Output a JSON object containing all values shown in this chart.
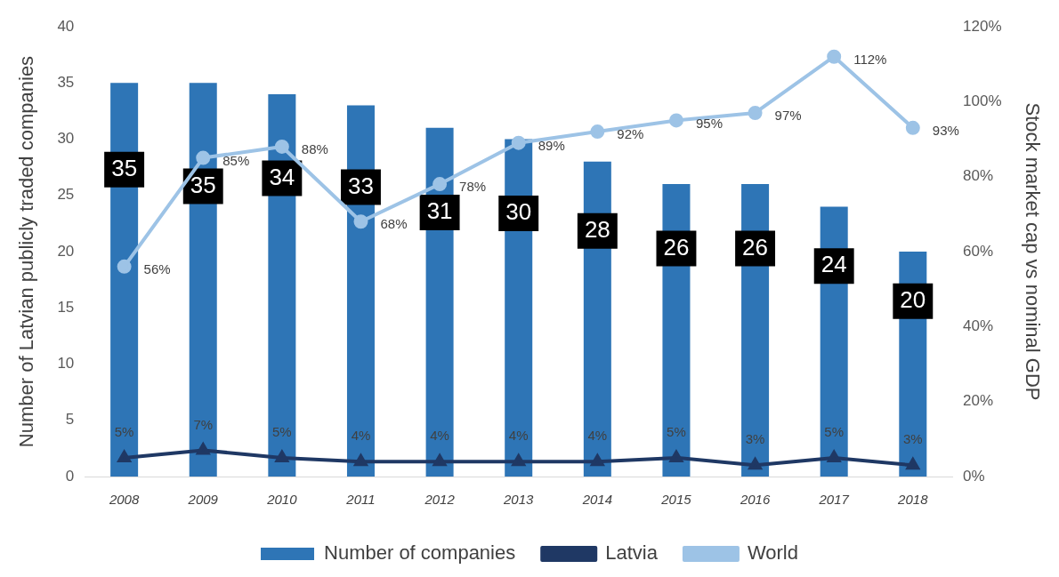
{
  "chart_data": {
    "type": "bar",
    "ylabel": "Number of Latvian publicly traded companies",
    "y2label": "Stock market cap vs nominal GDP",
    "categories": [
      "2008",
      "2009",
      "2010",
      "2011",
      "2012",
      "2013",
      "2014",
      "2015",
      "2016",
      "2017",
      "2018"
    ],
    "series": [
      {
        "name": "Number of companies",
        "color": "#2e75b6",
        "values": [
          35,
          35,
          34,
          33,
          31,
          30,
          28,
          26,
          26,
          24,
          20
        ],
        "value_labels": [
          "35",
          "35",
          "34",
          "33",
          "31",
          "30",
          "28",
          "26",
          "26",
          "24",
          "20"
        ]
      },
      {
        "name": "Latvia",
        "type": "line",
        "axis": "y2",
        "marker": "triangle",
        "color": "#1f3864",
        "values": [
          5,
          7,
          5,
          4,
          4,
          4,
          4,
          5,
          3,
          5,
          3
        ],
        "value_labels": [
          "5%",
          "7%",
          "5%",
          "4%",
          "4%",
          "4%",
          "4%",
          "5%",
          "3%",
          "5%",
          "3%"
        ]
      },
      {
        "name": "World",
        "type": "line",
        "axis": "y2",
        "marker": "circle",
        "color": "#9dc3e6",
        "values": [
          56,
          85,
          88,
          68,
          78,
          89,
          92,
          95,
          97,
          112,
          93
        ],
        "value_labels": [
          "56%",
          "85%",
          "88%",
          "68%",
          "78%",
          "89%",
          "92%",
          "95%",
          "97%",
          "112%",
          "93%"
        ]
      }
    ],
    "ylim": [
      0,
      40
    ],
    "yticks": [
      0,
      5,
      10,
      15,
      20,
      25,
      30,
      35,
      40
    ],
    "y2lim": [
      0,
      120
    ],
    "y2ticks": [
      {
        "value": 0,
        "label": "0%"
      },
      {
        "value": 20,
        "label": "20%"
      },
      {
        "value": 40,
        "label": "40%"
      },
      {
        "value": 60,
        "label": "60%"
      },
      {
        "value": 80,
        "label": "80%"
      },
      {
        "value": 100,
        "label": "100%"
      },
      {
        "value": 120,
        "label": "120%"
      }
    ],
    "grid": false,
    "legend": "bottom"
  }
}
